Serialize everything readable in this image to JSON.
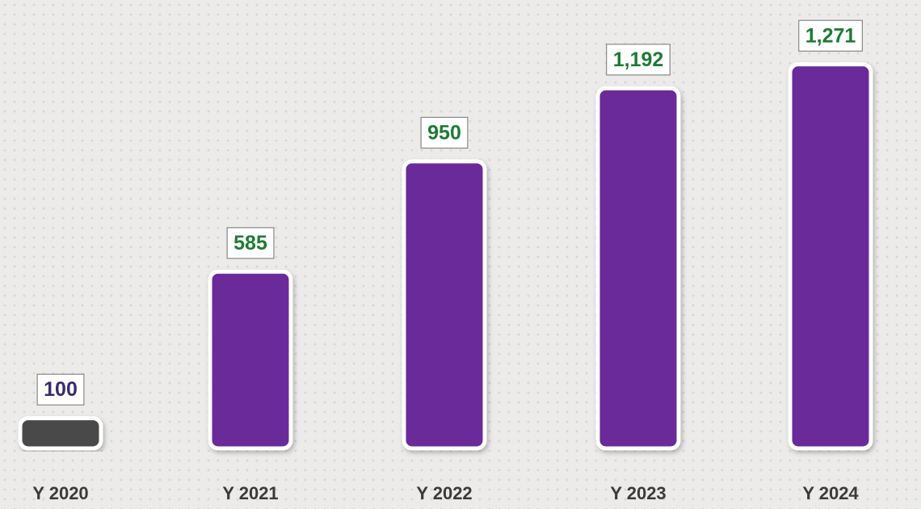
{
  "chart_data": {
    "type": "bar",
    "categories": [
      "Y 2020",
      "Y 2021",
      "Y 2022",
      "Y 2023",
      "Y 2024"
    ],
    "values": [
      100,
      585,
      950,
      1192,
      1271
    ],
    "value_labels": [
      "100",
      "585",
      "950",
      "1,192",
      "1,271"
    ],
    "colors": [
      "#4a4a4a",
      "#6b2c99",
      "#6b2c99",
      "#6b2c99",
      "#6b2c99"
    ]
  }
}
